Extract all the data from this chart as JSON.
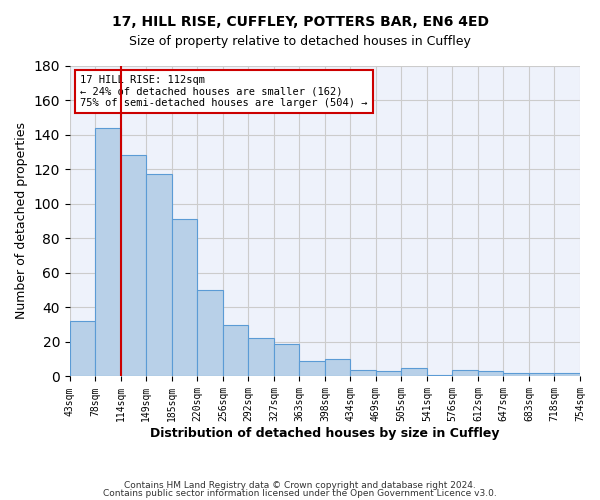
{
  "title_line1": "17, HILL RISE, CUFFLEY, POTTERS BAR, EN6 4ED",
  "title_line2": "Size of property relative to detached houses in Cuffley",
  "xlabel": "Distribution of detached houses by size in Cuffley",
  "ylabel": "Number of detached properties",
  "footer_line1": "Contains HM Land Registry data © Crown copyright and database right 2024.",
  "footer_line2": "Contains public sector information licensed under the Open Government Licence v3.0.",
  "bar_labels": [
    "43sqm",
    "78sqm",
    "114sqm",
    "149sqm",
    "185sqm",
    "220sqm",
    "256sqm",
    "292sqm",
    "327sqm",
    "363sqm",
    "398sqm",
    "434sqm",
    "469sqm",
    "505sqm",
    "541sqm",
    "576sqm",
    "612sqm",
    "647sqm",
    "683sqm",
    "718sqm",
    "754sqm"
  ],
  "bar_values": [
    32,
    144,
    128,
    117,
    91,
    50,
    30,
    22,
    19,
    9,
    10,
    4,
    3,
    5,
    1,
    4,
    3,
    2,
    2,
    2
  ],
  "bar_color": "#b8d0e8",
  "bar_edge_color": "#5b9bd5",
  "background_color": "#eef2fb",
  "grid_color": "#cccccc",
  "annotation_text_line1": "17 HILL RISE: 112sqm",
  "annotation_text_line2": "← 24% of detached houses are smaller (162)",
  "annotation_text_line3": "75% of semi-detached houses are larger (504) →",
  "annotation_box_color": "#ffffff",
  "annotation_box_edge_color": "#cc0000",
  "vline_color": "#cc0000",
  "ylim": [
    0,
    180
  ],
  "yticks": [
    0,
    20,
    40,
    60,
    80,
    100,
    120,
    140,
    160,
    180
  ]
}
